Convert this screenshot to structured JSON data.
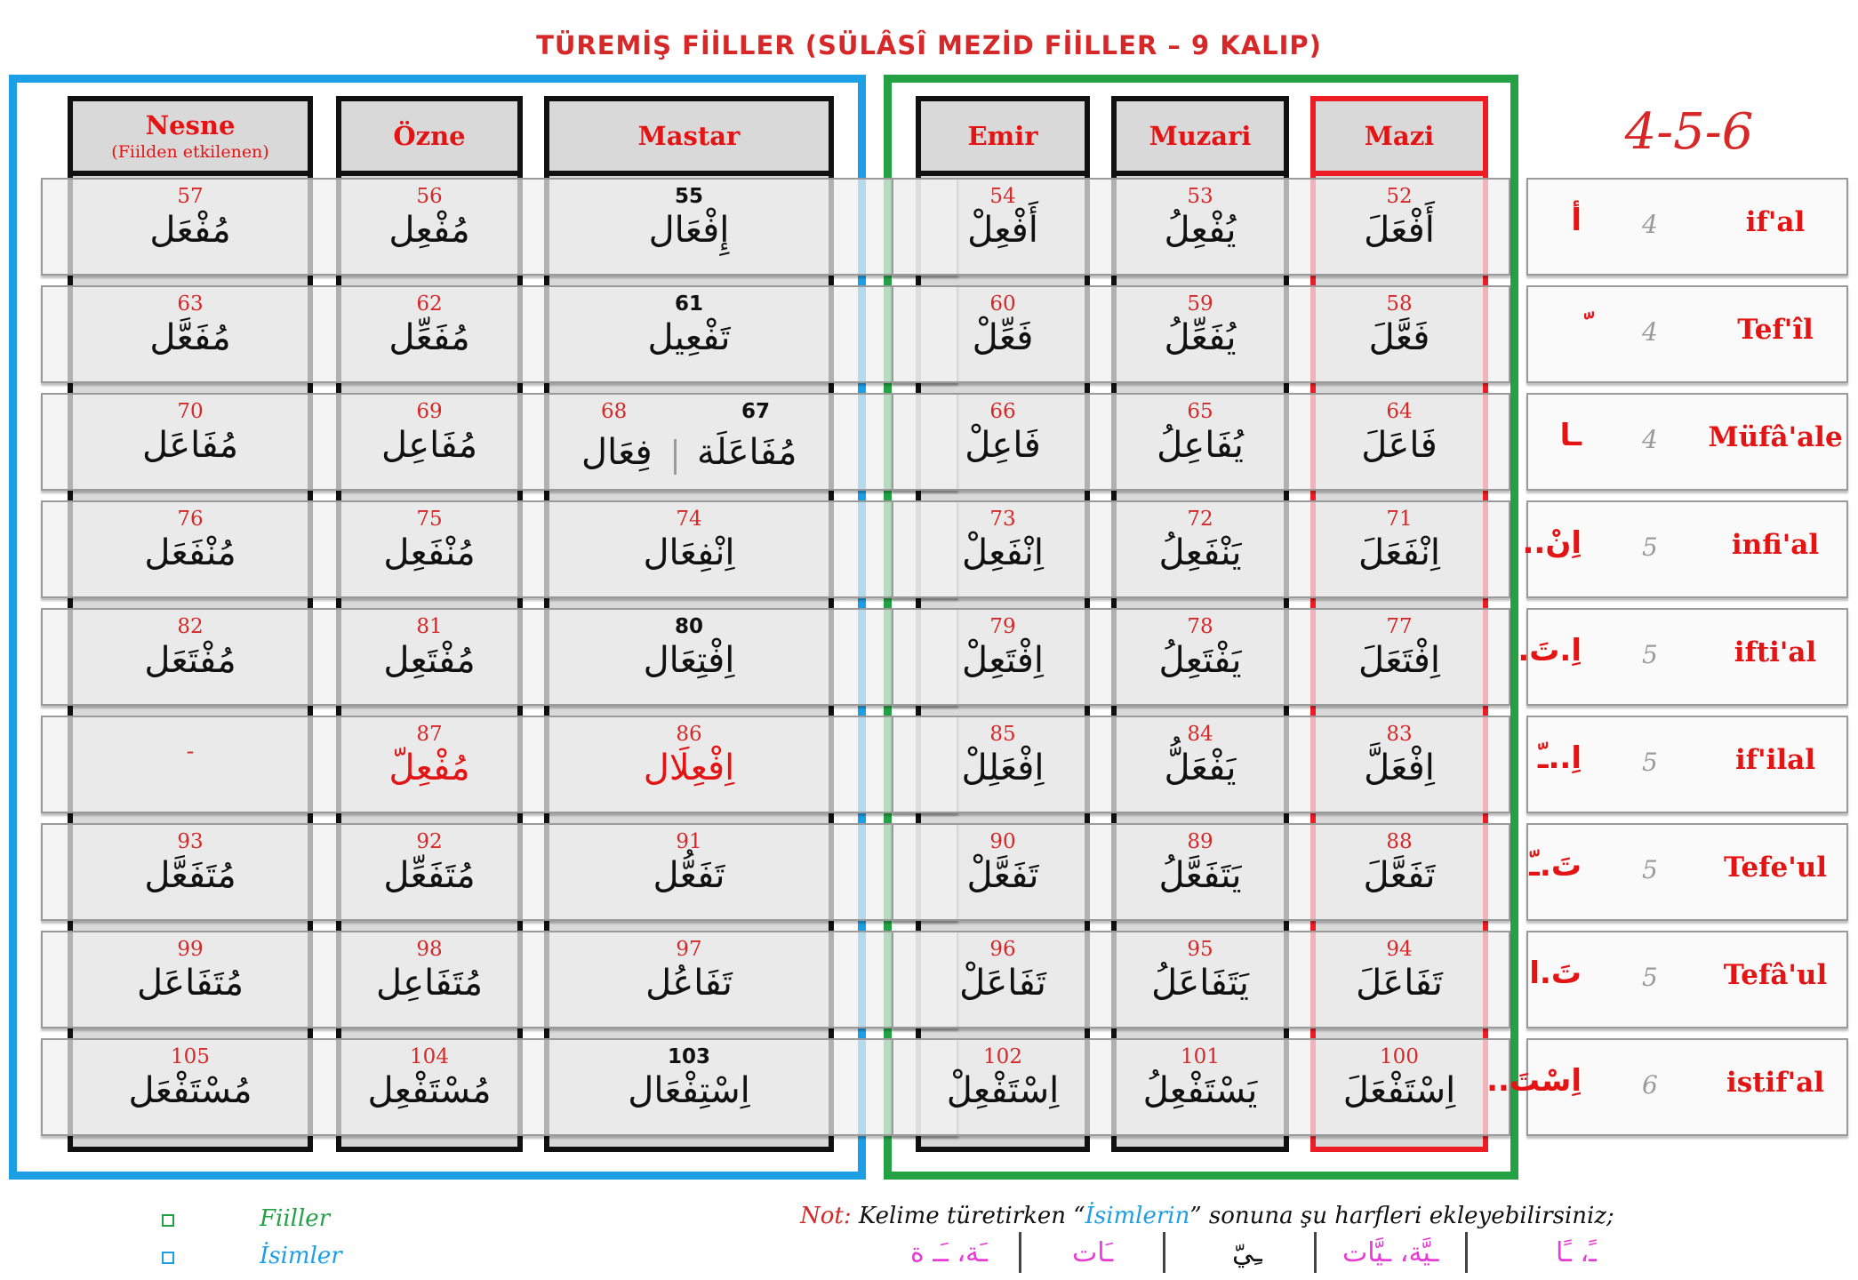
{
  "title": "TÜREMİŞ FİİLLER (SÜLÂSÎ MEZİD FİİLLER – 9 KALIP)",
  "big_label": "4-5-6",
  "headers": {
    "nesne": "Nesne",
    "nesne_sub": "(Fiilden etkilenen)",
    "ozne": "Özne",
    "mastar": "Mastar",
    "emir": "Emir",
    "muzari": "Muzari",
    "mazi": "Mazi"
  },
  "rows": [
    {
      "nesne_n": "57",
      "nesne": "مُفْعَل",
      "ozne_n": "56",
      "ozne": "مُفْعِل",
      "mastar_n": "55",
      "mastar": "إِفْعَال",
      "emir_n": "54",
      "emir": "أَفْعِلْ",
      "muzari_n": "53",
      "muzari": "يُفْعِلُ",
      "mazi_n": "52",
      "mazi": "أَفْعَلَ",
      "letters": "أ",
      "count": "4",
      "name": "if'al"
    },
    {
      "nesne_n": "63",
      "nesne": "مُفَعَّل",
      "ozne_n": "62",
      "ozne": "مُفَعِّل",
      "mastar_n": "61",
      "mastar": "تَفْعِيل",
      "emir_n": "60",
      "emir": "فَعِّلْ",
      "muzari_n": "59",
      "muzari": "يُفَعِّلُ",
      "mazi_n": "58",
      "mazi": "فَعَّلَ",
      "letters": "ّ",
      "count": "4",
      "name": "Tef'îl"
    },
    {
      "nesne_n": "70",
      "nesne": "مُفَاعَل",
      "ozne_n": "69",
      "ozne": "مُفَاعِل",
      "mastar_n": "67",
      "mastar": "مُفَاعَلَة",
      "mastar_b_n": "68",
      "mastar_b": "فِعَال",
      "emir_n": "66",
      "emir": "فَاعِلْ",
      "muzari_n": "65",
      "muzari": "يُفَاعِلُ",
      "mazi_n": "64",
      "mazi": "فَاعَلَ",
      "letters": "ـا",
      "count": "4",
      "name": "Müfâ'ale"
    },
    {
      "nesne_n": "76",
      "nesne": "مُنْفَعَل",
      "ozne_n": "75",
      "ozne": "مُنْفَعِل",
      "mastar_n": "74",
      "mastar": "اِنْفِعَال",
      "emir_n": "73",
      "emir": "اِنْفَعِلْ",
      "muzari_n": "72",
      "muzari": "يَنْفَعِلُ",
      "mazi_n": "71",
      "mazi": "اِنْفَعَلَ",
      "letters": "اِنْ..",
      "count": "5",
      "name": "infi'al"
    },
    {
      "nesne_n": "82",
      "nesne": "مُفْتَعَل",
      "ozne_n": "81",
      "ozne": "مُفْتَعِل",
      "mastar_n": "80",
      "mastar": "اِفْتِعَال",
      "emir_n": "79",
      "emir": "اِفْتَعِلْ",
      "muzari_n": "78",
      "muzari": "يَفْتَعِلُ",
      "mazi_n": "77",
      "mazi": "اِفْتَعَلَ",
      "letters": "اِ.تَ.",
      "count": "5",
      "name": "ifti'al"
    },
    {
      "nesne_n": "",
      "nesne": "-",
      "ozne_n": "87",
      "ozne": "مُفْعِلّ",
      "mastar_n": "86",
      "mastar": "اِفْعِلَال",
      "emir_n": "85",
      "emir": "اِفْعَلِلْ",
      "muzari_n": "84",
      "muzari": "يَفْعَلُّ",
      "mazi_n": "83",
      "mazi": "اِفْعَلَّ",
      "letters": "اِ..ـّ",
      "count": "5",
      "name": "if'ilal"
    },
    {
      "nesne_n": "93",
      "nesne": "مُتَفَعَّل",
      "ozne_n": "92",
      "ozne": "مُتَفَعِّل",
      "mastar_n": "91",
      "mastar": "تَفَعُّل",
      "emir_n": "90",
      "emir": "تَفَعَّلْ",
      "muzari_n": "89",
      "muzari": "يَتَفَعَّلُ",
      "mazi_n": "88",
      "mazi": "تَفَعَّلَ",
      "letters": "تَ.ـّ",
      "count": "5",
      "name": "Tefe'ul"
    },
    {
      "nesne_n": "99",
      "nesne": "مُتَفَاعَل",
      "ozne_n": "98",
      "ozne": "مُتَفَاعِل",
      "mastar_n": "97",
      "mastar": "تَفَاعُل",
      "emir_n": "96",
      "emir": "تَفَاعَلْ",
      "muzari_n": "95",
      "muzari": "يَتَفَاعَلُ",
      "mazi_n": "94",
      "mazi": "تَفَاعَلَ",
      "letters": "تَ.ا",
      "count": "5",
      "name": "Tefâ'ul"
    },
    {
      "nesne_n": "105",
      "nesne": "مُسْتَفْعَل",
      "ozne_n": "104",
      "ozne": "مُسْتَفْعِل",
      "mastar_n": "103",
      "mastar": "اِسْتِفْعَال",
      "emir_n": "102",
      "emir": "اِسْتَفْعِلْ",
      "muzari_n": "101",
      "muzari": "يَسْتَفْعِلُ",
      "mazi_n": "100",
      "mazi": "اِسْتَفْعَلَ",
      "letters": "اِسْتَ..",
      "count": "6",
      "name": "istif'al"
    }
  ],
  "legend": [
    {
      "label": "Fiiller",
      "color": "#24a144"
    },
    {
      "label": "İsimler",
      "color": "#1d9fe6"
    }
  ],
  "note": {
    "lead": "Not:",
    "text1": " Kelime türetirken “",
    "highlight": "İsimlerin",
    "text2": "” sonuna şu harfleri ekleyebilirsiniz;"
  },
  "suffixes": [
    "ـً، ـًا",
    "ـيَّة، ـيَّات",
    "ـِيّ",
    "ـَات",
    "ـَة، ـَـ ة"
  ],
  "colors": {
    "blue": "#1d9fe6",
    "green": "#24a144",
    "red": "#e41414",
    "pink": "#e83ad4"
  }
}
